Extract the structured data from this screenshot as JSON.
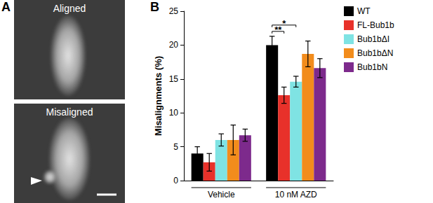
{
  "figure_panels": {
    "a_label": "A",
    "a_images": [
      "Aligned",
      "Misaligned"
    ],
    "b_label": "B"
  },
  "chart_data": {
    "type": "bar",
    "y_label": "Misalignments (%)",
    "categories": [
      "Vehicle",
      "10 nM AZD"
    ],
    "series": [
      {
        "name": "WT",
        "color": "#000000",
        "values": [
          4.0,
          20.0
        ],
        "errors": [
          1.0,
          1.3
        ]
      },
      {
        "name": "FL-Bub1b",
        "color": "#e8312a",
        "values": [
          2.7,
          12.6
        ],
        "errors": [
          1.3,
          1.2
        ]
      },
      {
        "name": "Bub1bΔI",
        "color": "#7fe3e3",
        "values": [
          6.0,
          14.6
        ],
        "errors": [
          0.9,
          0.8
        ]
      },
      {
        "name": "Bub1bΔN",
        "color": "#f28c1c",
        "values": [
          6.0,
          18.7
        ],
        "errors": [
          2.2,
          1.9
        ]
      },
      {
        "name": "Bub1bN",
        "color": "#7d2a8c",
        "values": [
          6.7,
          16.6
        ],
        "errors": [
          0.9,
          1.4
        ]
      }
    ],
    "ylim": [
      0,
      25
    ],
    "yticks": [
      0,
      5,
      10,
      15,
      20,
      25
    ],
    "grid": false,
    "legend": "right",
    "annotations": [
      {
        "category": "10 nM AZD",
        "from": "WT",
        "to": "FL-Bub1b",
        "label": "**"
      },
      {
        "category": "10 nM AZD",
        "from": "WT",
        "to": "Bub1bΔI",
        "label": "*"
      }
    ]
  }
}
